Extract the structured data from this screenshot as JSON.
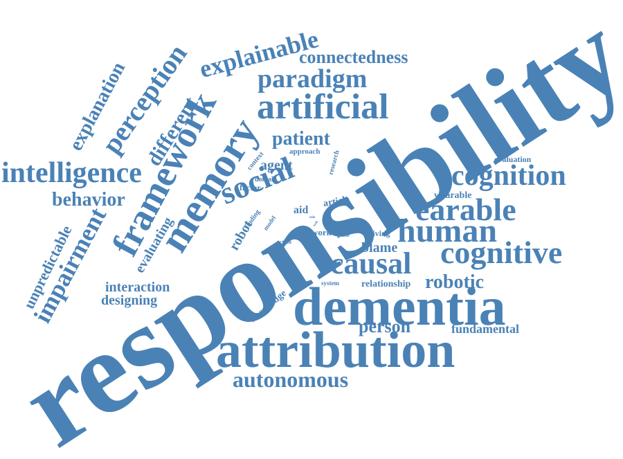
{
  "word_cloud": {
    "color": "#4a82b6",
    "background": "#ffffff",
    "words": [
      {
        "text": "responsibility"
      },
      {
        "text": "dementia"
      },
      {
        "text": "attribution"
      },
      {
        "text": "artificial"
      },
      {
        "text": "memory"
      },
      {
        "text": "framework"
      },
      {
        "text": "social"
      },
      {
        "text": "intelligence"
      },
      {
        "text": "earable"
      },
      {
        "text": "cognition"
      },
      {
        "text": "human"
      },
      {
        "text": "cognitive"
      },
      {
        "text": "causal"
      },
      {
        "text": "paradigm"
      },
      {
        "text": "explainable"
      },
      {
        "text": "connectedness"
      },
      {
        "text": "patient"
      },
      {
        "text": "perception"
      },
      {
        "text": "different"
      },
      {
        "text": "explanation"
      },
      {
        "text": "behavior"
      },
      {
        "text": "impairment"
      },
      {
        "text": "unpredictable"
      },
      {
        "text": "autonomous"
      },
      {
        "text": "robotic"
      },
      {
        "text": "person"
      },
      {
        "text": "blame"
      },
      {
        "text": "fundamental"
      },
      {
        "text": "interaction"
      },
      {
        "text": "designing"
      },
      {
        "text": "evaluating"
      },
      {
        "text": "agent"
      },
      {
        "text": "robot"
      },
      {
        "text": "knowledge"
      },
      {
        "text": "relationship"
      },
      {
        "text": "wearable"
      },
      {
        "text": "evaluation"
      },
      {
        "text": "article"
      },
      {
        "text": "aid"
      },
      {
        "text": "factor"
      },
      {
        "text": "domain"
      },
      {
        "text": "context"
      },
      {
        "text": "approach"
      },
      {
        "text": "research"
      },
      {
        "text": "finding"
      },
      {
        "text": "model"
      },
      {
        "text": "work"
      },
      {
        "text": "elicit"
      },
      {
        "text": "game"
      },
      {
        "text": "living"
      },
      {
        "text": "action"
      },
      {
        "text": "system"
      },
      {
        "text": "role"
      },
      {
        "text": "task"
      }
    ]
  }
}
